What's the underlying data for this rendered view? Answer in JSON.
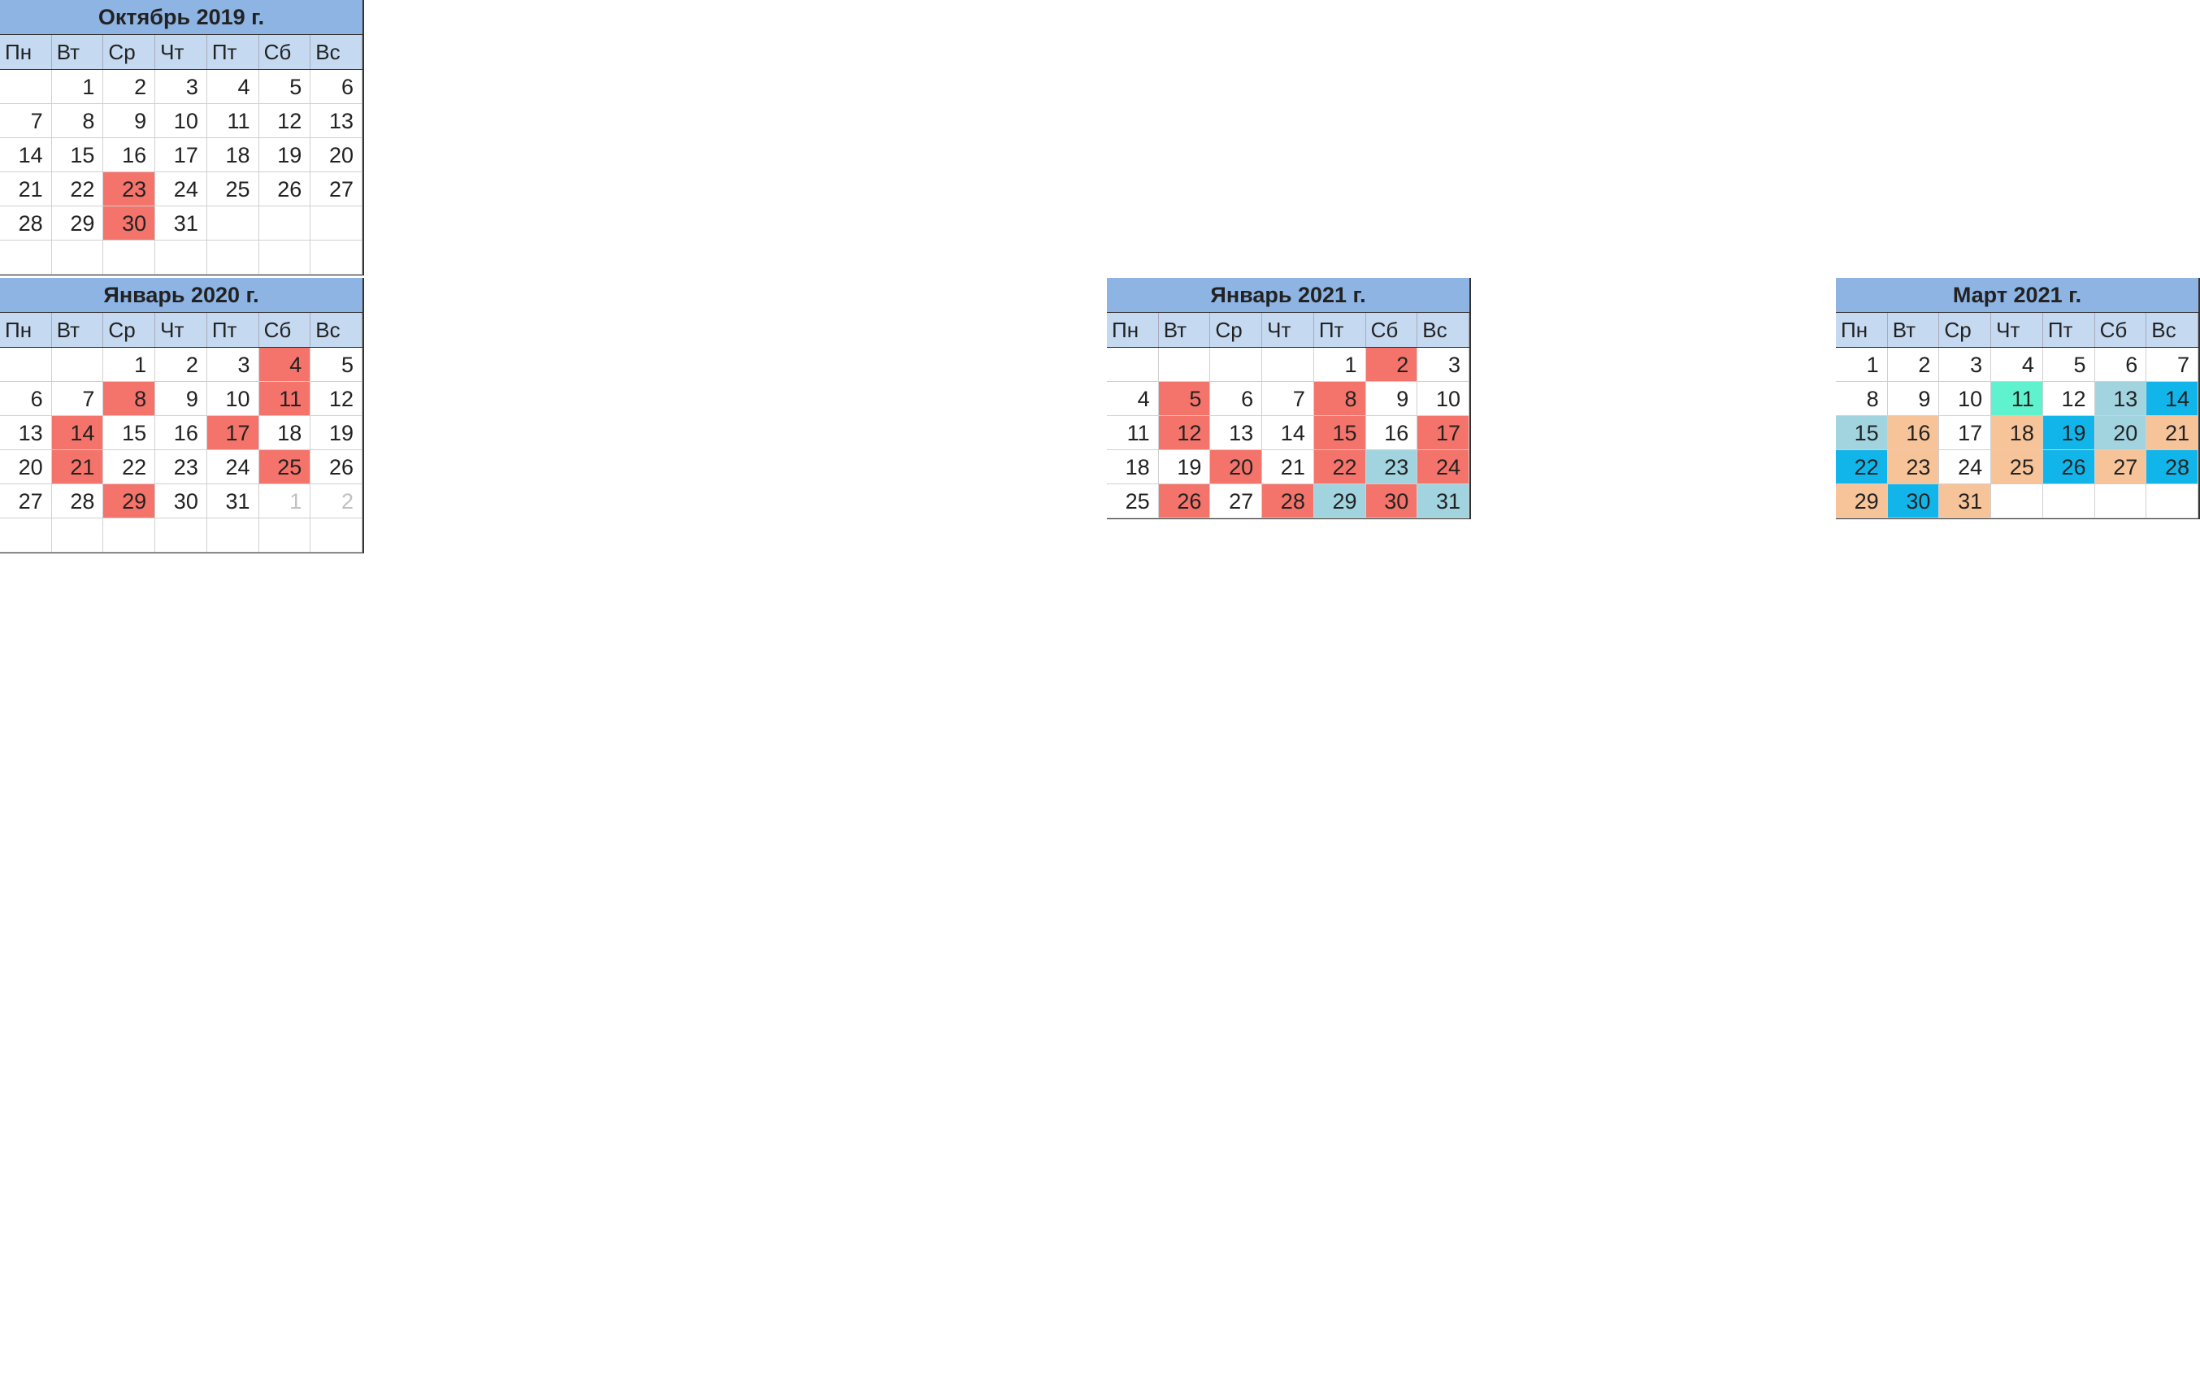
{
  "weekday_labels": [
    "Пн",
    "Вт",
    "Ср",
    "Чт",
    "Пт",
    "Сб",
    "Вс"
  ],
  "calendars": [
    {
      "title": "Октябрь 2019 г.",
      "weeks": [
        [
          "",
          "1",
          "2",
          "3",
          "4",
          "5",
          "6"
        ],
        [
          "7",
          "8",
          "9",
          "10",
          "11",
          "12",
          "13"
        ],
        [
          "14",
          "15",
          "16",
          "17",
          "18",
          "19",
          "20"
        ],
        [
          "21",
          "22",
          "23",
          "24",
          "25",
          "26",
          "27"
        ],
        [
          "28",
          "29",
          "30",
          "31",
          "",
          "",
          ""
        ],
        [
          "",
          "",
          "",
          "",
          "",
          "",
          ""
        ]
      ],
      "highlights": {
        "23": "red",
        "30": "red"
      }
    },
    {
      "title": "Январь 2020 г.",
      "weeks": [
        [
          "",
          "",
          "1",
          "2",
          "3",
          "4",
          "5"
        ],
        [
          "6",
          "7",
          "8",
          "9",
          "10",
          "11",
          "12"
        ],
        [
          "13",
          "14",
          "15",
          "16",
          "17",
          "18",
          "19"
        ],
        [
          "20",
          "21",
          "22",
          "23",
          "24",
          "25",
          "26"
        ],
        [
          "27",
          "28",
          "29",
          "30",
          "31",
          "1",
          "2"
        ],
        [
          "",
          "",
          "",
          "",
          "",
          "",
          ""
        ]
      ],
      "highlights": {
        "4": "red",
        "8": "red",
        "11": "red",
        "14": "red",
        "17": "red",
        "21": "red",
        "25": "red",
        "29": "red"
      }
    },
    {
      "title": "Январь 2021 г.",
      "weeks": [
        [
          "",
          "",
          "",
          "",
          "1",
          "2",
          "3"
        ],
        [
          "4",
          "5",
          "6",
          "7",
          "8",
          "9",
          "10"
        ],
        [
          "11",
          "12",
          "13",
          "14",
          "15",
          "16",
          "17"
        ],
        [
          "18",
          "19",
          "20",
          "21",
          "22",
          "23",
          "24"
        ],
        [
          "25",
          "26",
          "27",
          "28",
          "29",
          "30",
          "31"
        ]
      ],
      "highlights": {
        "2": "red",
        "5": "red",
        "8": "red",
        "12": "red",
        "15": "red",
        "17": "red",
        "20": "red",
        "22": "red",
        "23": "slate",
        "24": "red",
        "26": "red",
        "28": "red",
        "29": "slate",
        "30": "red",
        "31": "slate"
      }
    },
    {
      "title": "Март 2021 г.",
      "weeks": [
        [
          "1",
          "2",
          "3",
          "4",
          "5",
          "6",
          "7"
        ],
        [
          "8",
          "9",
          "10",
          "11",
          "12",
          "13",
          "14"
        ],
        [
          "15",
          "16",
          "17",
          "18",
          "19",
          "20",
          "21"
        ],
        [
          "22",
          "23",
          "24",
          "25",
          "26",
          "27",
          "28"
        ],
        [
          "29",
          "30",
          "31",
          "",
          "",
          "",
          ""
        ]
      ],
      "highlights": {
        "11": "teal",
        "13": "slate",
        "14": "blue",
        "15": "slate",
        "16": "orange",
        "18": "orange",
        "19": "blue",
        "20": "slate",
        "21": "orange",
        "22": "blue",
        "23": "orange",
        "25": "orange",
        "26": "blue",
        "27": "orange",
        "28": "blue",
        "29": "orange",
        "30": "blue",
        "31": "orange"
      }
    }
  ]
}
